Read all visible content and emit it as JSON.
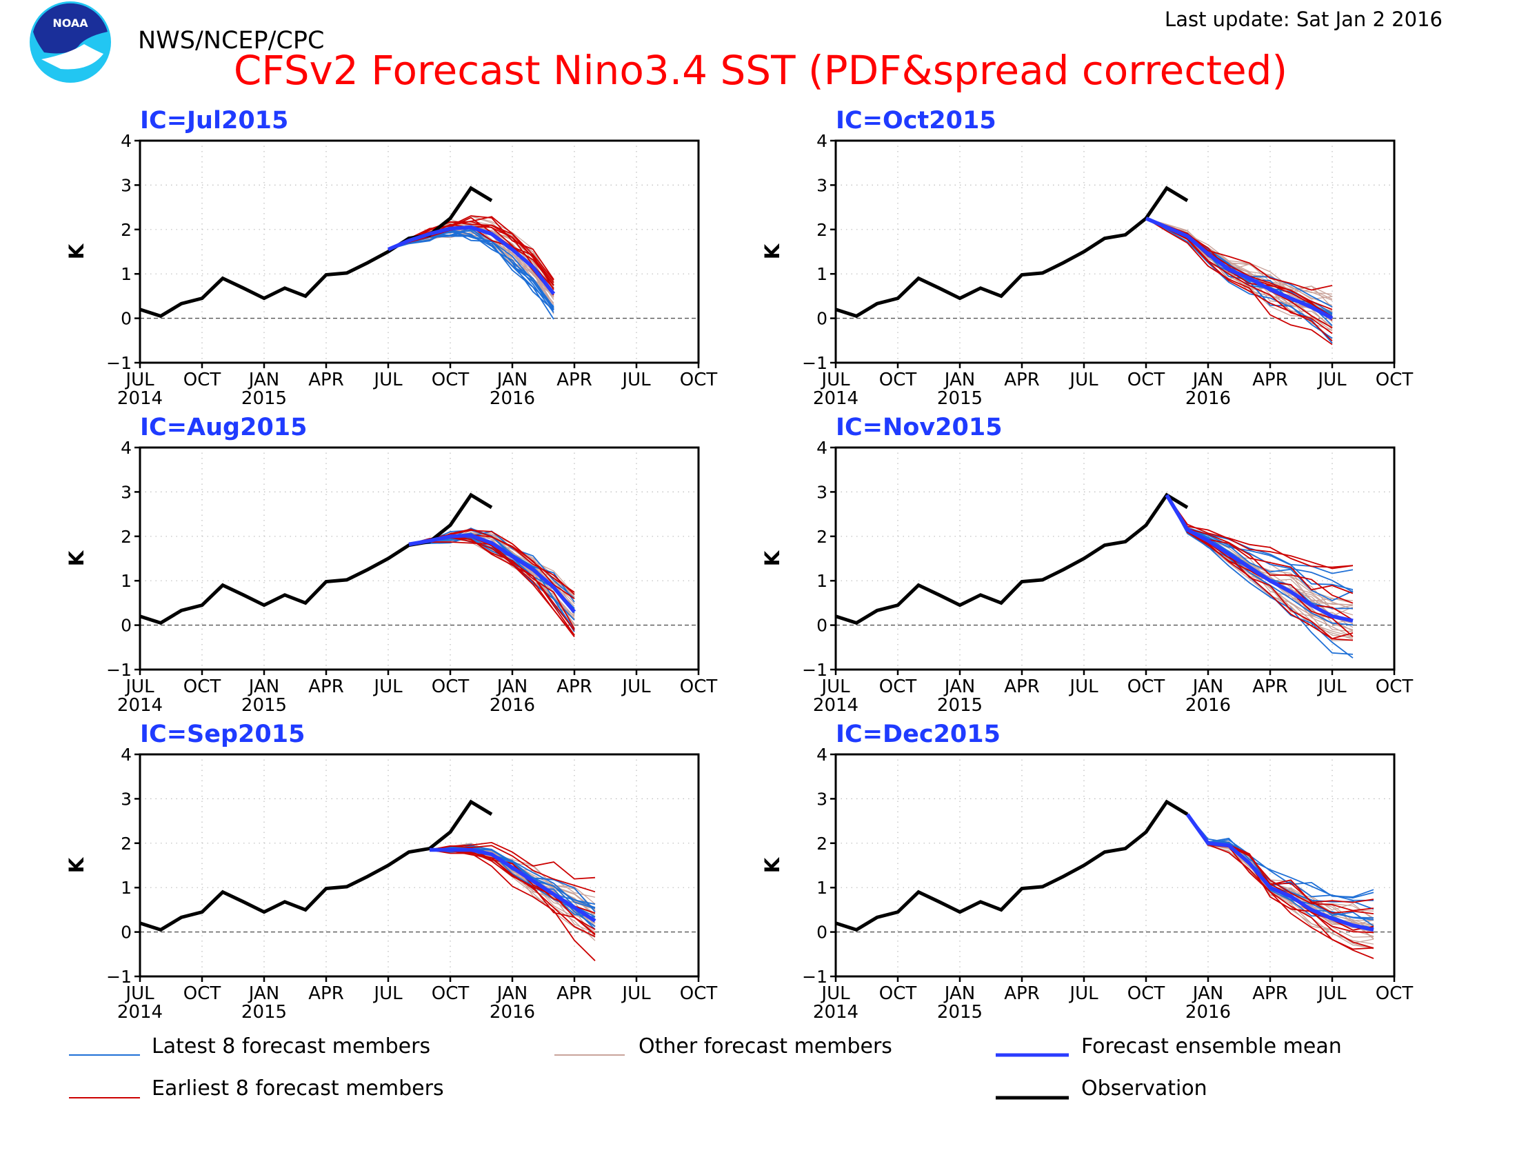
{
  "header": {
    "agency": "NWS/NCEP/CPC",
    "title": "CFSv2 Forecast Nino3.4 SST (PDF&spread corrected)",
    "last_update": "Last update: Sat Jan 2 2016",
    "logo_text": "NOAA"
  },
  "colors": {
    "title": "#ff0000",
    "panel_title": "#1f3bff",
    "observation": "#000000",
    "ensemble_mean": "#2a3cff",
    "latest_members": "#1e6fd6",
    "earliest_members": "#cc0000",
    "other_members": "#c9a39a",
    "logo_outer": "#22c6f2",
    "logo_inner": "#1a2f9a"
  },
  "legend": {
    "items": [
      {
        "label": "Latest 8 forecast members",
        "color": "#1e6fd6",
        "thick": false
      },
      {
        "label": "Other forecast members",
        "color": "#c9a39a",
        "thick": false
      },
      {
        "label": "Forecast ensemble mean",
        "color": "#2a3cff",
        "thick": true
      },
      {
        "label": "Earliest 8 forecast members",
        "color": "#cc0000",
        "thick": false
      },
      {
        "label": "Observation",
        "color": "#000000",
        "thick": true
      }
    ]
  },
  "chart_data": [
    {
      "type": "line",
      "ic": "IC=Jul2015",
      "ylabel": "K",
      "ylim": [
        -1,
        4
      ],
      "x_ticks": [
        "JUL",
        "OCT",
        "JAN",
        "APR",
        "JUL",
        "OCT",
        "JAN",
        "APR",
        "JUL",
        "OCT"
      ],
      "year_labels": [
        {
          "at": 0,
          "label": "2014"
        },
        {
          "at": 6,
          "label": "2015"
        },
        {
          "at": 18,
          "label": "2016"
        }
      ],
      "grid": true,
      "zero_line": true,
      "observation": [
        {
          "x": 0,
          "y": 0.2
        },
        {
          "x": 1,
          "y": 0.05
        },
        {
          "x": 2,
          "y": 0.33
        },
        {
          "x": 3,
          "y": 0.45
        },
        {
          "x": 4,
          "y": 0.9
        },
        {
          "x": 5,
          "y": 0.68
        },
        {
          "x": 6,
          "y": 0.45
        },
        {
          "x": 7,
          "y": 0.68
        },
        {
          "x": 8,
          "y": 0.5
        },
        {
          "x": 9,
          "y": 0.98
        },
        {
          "x": 10,
          "y": 1.02
        },
        {
          "x": 11,
          "y": 1.25
        },
        {
          "x": 12,
          "y": 1.5
        },
        {
          "x": 13,
          "y": 1.8
        },
        {
          "x": 14,
          "y": 1.88
        },
        {
          "x": 15,
          "y": 2.25
        },
        {
          "x": 16,
          "y": 2.93
        },
        {
          "x": 17,
          "y": 2.65
        }
      ],
      "ensemble_mean": [
        {
          "x": 12,
          "y": 1.55
        },
        {
          "x": 13,
          "y": 1.75
        },
        {
          "x": 14,
          "y": 1.9
        },
        {
          "x": 15,
          "y": 2.02
        },
        {
          "x": 16,
          "y": 2.05
        },
        {
          "x": 17,
          "y": 1.9
        },
        {
          "x": 18,
          "y": 1.55
        },
        {
          "x": 19,
          "y": 1.15
        },
        {
          "x": 20,
          "y": 0.55
        }
      ],
      "spread": {
        "latest": [
          -0.55,
          0.0
        ],
        "earliest": [
          0.0,
          0.45
        ],
        "other": [
          -0.3,
          0.3
        ]
      }
    },
    {
      "type": "line",
      "ic": "IC=Oct2015",
      "ylabel": "K",
      "ylim": [
        -1,
        4
      ],
      "x_ticks": [
        "JUL",
        "OCT",
        "JAN",
        "APR",
        "JUL",
        "OCT",
        "JAN",
        "APR",
        "JUL",
        "OCT"
      ],
      "year_labels": [
        {
          "at": 0,
          "label": "2014"
        },
        {
          "at": 6,
          "label": "2015"
        },
        {
          "at": 18,
          "label": "2016"
        }
      ],
      "grid": true,
      "zero_line": true,
      "observation": [
        {
          "x": 0,
          "y": 0.2
        },
        {
          "x": 1,
          "y": 0.05
        },
        {
          "x": 2,
          "y": 0.33
        },
        {
          "x": 3,
          "y": 0.45
        },
        {
          "x": 4,
          "y": 0.9
        },
        {
          "x": 5,
          "y": 0.68
        },
        {
          "x": 6,
          "y": 0.45
        },
        {
          "x": 7,
          "y": 0.68
        },
        {
          "x": 8,
          "y": 0.5
        },
        {
          "x": 9,
          "y": 0.98
        },
        {
          "x": 10,
          "y": 1.02
        },
        {
          "x": 11,
          "y": 1.25
        },
        {
          "x": 12,
          "y": 1.5
        },
        {
          "x": 13,
          "y": 1.8
        },
        {
          "x": 14,
          "y": 1.88
        },
        {
          "x": 15,
          "y": 2.25
        },
        {
          "x": 16,
          "y": 2.93
        },
        {
          "x": 17,
          "y": 2.65
        }
      ],
      "ensemble_mean": [
        {
          "x": 15,
          "y": 2.25
        },
        {
          "x": 16,
          "y": 2.05
        },
        {
          "x": 17,
          "y": 1.85
        },
        {
          "x": 18,
          "y": 1.45
        },
        {
          "x": 19,
          "y": 1.1
        },
        {
          "x": 20,
          "y": 0.9
        },
        {
          "x": 21,
          "y": 0.65
        },
        {
          "x": 22,
          "y": 0.45
        },
        {
          "x": 23,
          "y": 0.25
        },
        {
          "x": 24,
          "y": 0.0
        }
      ],
      "spread": {
        "latest": [
          -0.5,
          0.35
        ],
        "earliest": [
          -0.75,
          0.65
        ],
        "other": [
          -0.45,
          0.45
        ]
      }
    },
    {
      "type": "line",
      "ic": "IC=Aug2015",
      "ylabel": "K",
      "ylim": [
        -1,
        4
      ],
      "x_ticks": [
        "JUL",
        "OCT",
        "JAN",
        "APR",
        "JUL",
        "OCT",
        "JAN",
        "APR",
        "JUL",
        "OCT"
      ],
      "year_labels": [
        {
          "at": 0,
          "label": "2014"
        },
        {
          "at": 6,
          "label": "2015"
        },
        {
          "at": 18,
          "label": "2016"
        }
      ],
      "grid": true,
      "zero_line": true,
      "observation": [
        {
          "x": 0,
          "y": 0.2
        },
        {
          "x": 1,
          "y": 0.05
        },
        {
          "x": 2,
          "y": 0.33
        },
        {
          "x": 3,
          "y": 0.45
        },
        {
          "x": 4,
          "y": 0.9
        },
        {
          "x": 5,
          "y": 0.68
        },
        {
          "x": 6,
          "y": 0.45
        },
        {
          "x": 7,
          "y": 0.68
        },
        {
          "x": 8,
          "y": 0.5
        },
        {
          "x": 9,
          "y": 0.98
        },
        {
          "x": 10,
          "y": 1.02
        },
        {
          "x": 11,
          "y": 1.25
        },
        {
          "x": 12,
          "y": 1.5
        },
        {
          "x": 13,
          "y": 1.8
        },
        {
          "x": 14,
          "y": 1.88
        },
        {
          "x": 15,
          "y": 2.25
        },
        {
          "x": 16,
          "y": 2.93
        },
        {
          "x": 17,
          "y": 2.65
        }
      ],
      "ensemble_mean": [
        {
          "x": 13,
          "y": 1.82
        },
        {
          "x": 14,
          "y": 1.9
        },
        {
          "x": 15,
          "y": 2.0
        },
        {
          "x": 16,
          "y": 2.02
        },
        {
          "x": 17,
          "y": 1.85
        },
        {
          "x": 18,
          "y": 1.55
        },
        {
          "x": 19,
          "y": 1.25
        },
        {
          "x": 20,
          "y": 0.85
        },
        {
          "x": 21,
          "y": 0.3
        }
      ],
      "spread": {
        "latest": [
          -0.45,
          0.35
        ],
        "earliest": [
          -0.6,
          0.5
        ],
        "other": [
          -0.3,
          0.3
        ]
      }
    },
    {
      "type": "line",
      "ic": "IC=Nov2015",
      "ylabel": "K",
      "ylim": [
        -1,
        4
      ],
      "x_ticks": [
        "JUL",
        "OCT",
        "JAN",
        "APR",
        "JUL",
        "OCT",
        "JAN",
        "APR",
        "JUL",
        "OCT"
      ],
      "year_labels": [
        {
          "at": 0,
          "label": "2014"
        },
        {
          "at": 6,
          "label": "2015"
        },
        {
          "at": 18,
          "label": "2016"
        }
      ],
      "grid": true,
      "zero_line": true,
      "observation": [
        {
          "x": 0,
          "y": 0.2
        },
        {
          "x": 1,
          "y": 0.05
        },
        {
          "x": 2,
          "y": 0.33
        },
        {
          "x": 3,
          "y": 0.45
        },
        {
          "x": 4,
          "y": 0.9
        },
        {
          "x": 5,
          "y": 0.68
        },
        {
          "x": 6,
          "y": 0.45
        },
        {
          "x": 7,
          "y": 0.68
        },
        {
          "x": 8,
          "y": 0.5
        },
        {
          "x": 9,
          "y": 0.98
        },
        {
          "x": 10,
          "y": 1.02
        },
        {
          "x": 11,
          "y": 1.25
        },
        {
          "x": 12,
          "y": 1.5
        },
        {
          "x": 13,
          "y": 1.8
        },
        {
          "x": 14,
          "y": 1.88
        },
        {
          "x": 15,
          "y": 2.25
        },
        {
          "x": 16,
          "y": 2.93
        },
        {
          "x": 17,
          "y": 2.65
        }
      ],
      "ensemble_mean": [
        {
          "x": 16,
          "y": 2.93
        },
        {
          "x": 17,
          "y": 2.15
        },
        {
          "x": 18,
          "y": 1.9
        },
        {
          "x": 19,
          "y": 1.6
        },
        {
          "x": 20,
          "y": 1.3
        },
        {
          "x": 21,
          "y": 1.0
        },
        {
          "x": 22,
          "y": 0.75
        },
        {
          "x": 23,
          "y": 0.45
        },
        {
          "x": 24,
          "y": 0.2
        },
        {
          "x": 25,
          "y": 0.1
        }
      ],
      "spread": {
        "latest": [
          -1.05,
          1.1
        ],
        "earliest": [
          -0.75,
          1.7
        ],
        "other": [
          -0.45,
          0.45
        ]
      }
    },
    {
      "type": "line",
      "ic": "IC=Sep2015",
      "ylabel": "K",
      "ylim": [
        -1,
        4
      ],
      "x_ticks": [
        "JUL",
        "OCT",
        "JAN",
        "APR",
        "JUL",
        "OCT",
        "JAN",
        "APR",
        "JUL",
        "OCT"
      ],
      "year_labels": [
        {
          "at": 0,
          "label": "2014"
        },
        {
          "at": 6,
          "label": "2015"
        },
        {
          "at": 18,
          "label": "2016"
        }
      ],
      "grid": true,
      "zero_line": true,
      "observation": [
        {
          "x": 0,
          "y": 0.2
        },
        {
          "x": 1,
          "y": 0.05
        },
        {
          "x": 2,
          "y": 0.33
        },
        {
          "x": 3,
          "y": 0.45
        },
        {
          "x": 4,
          "y": 0.9
        },
        {
          "x": 5,
          "y": 0.68
        },
        {
          "x": 6,
          "y": 0.45
        },
        {
          "x": 7,
          "y": 0.68
        },
        {
          "x": 8,
          "y": 0.5
        },
        {
          "x": 9,
          "y": 0.98
        },
        {
          "x": 10,
          "y": 1.02
        },
        {
          "x": 11,
          "y": 1.25
        },
        {
          "x": 12,
          "y": 1.5
        },
        {
          "x": 13,
          "y": 1.8
        },
        {
          "x": 14,
          "y": 1.88
        },
        {
          "x": 15,
          "y": 2.25
        },
        {
          "x": 16,
          "y": 2.93
        },
        {
          "x": 17,
          "y": 2.65
        }
      ],
      "ensemble_mean": [
        {
          "x": 14,
          "y": 1.85
        },
        {
          "x": 15,
          "y": 1.85
        },
        {
          "x": 16,
          "y": 1.85
        },
        {
          "x": 17,
          "y": 1.75
        },
        {
          "x": 18,
          "y": 1.45
        },
        {
          "x": 19,
          "y": 1.15
        },
        {
          "x": 20,
          "y": 0.85
        },
        {
          "x": 21,
          "y": 0.55
        },
        {
          "x": 22,
          "y": 0.25
        }
      ],
      "spread": {
        "latest": [
          -0.25,
          0.45
        ],
        "earliest": [
          -0.75,
          0.95
        ],
        "other": [
          -0.4,
          0.4
        ]
      }
    },
    {
      "type": "line",
      "ic": "IC=Dec2015",
      "ylabel": "K",
      "ylim": [
        -1,
        4
      ],
      "x_ticks": [
        "JUL",
        "OCT",
        "JAN",
        "APR",
        "JUL",
        "OCT",
        "JAN",
        "APR",
        "JUL",
        "OCT"
      ],
      "year_labels": [
        {
          "at": 0,
          "label": "2014"
        },
        {
          "at": 6,
          "label": "2015"
        },
        {
          "at": 18,
          "label": "2016"
        }
      ],
      "grid": true,
      "zero_line": true,
      "observation": [
        {
          "x": 0,
          "y": 0.2
        },
        {
          "x": 1,
          "y": 0.05
        },
        {
          "x": 2,
          "y": 0.33
        },
        {
          "x": 3,
          "y": 0.45
        },
        {
          "x": 4,
          "y": 0.9
        },
        {
          "x": 5,
          "y": 0.68
        },
        {
          "x": 6,
          "y": 0.45
        },
        {
          "x": 7,
          "y": 0.68
        },
        {
          "x": 8,
          "y": 0.5
        },
        {
          "x": 9,
          "y": 0.98
        },
        {
          "x": 10,
          "y": 1.02
        },
        {
          "x": 11,
          "y": 1.25
        },
        {
          "x": 12,
          "y": 1.5
        },
        {
          "x": 13,
          "y": 1.8
        },
        {
          "x": 14,
          "y": 1.88
        },
        {
          "x": 15,
          "y": 2.25
        },
        {
          "x": 16,
          "y": 2.93
        },
        {
          "x": 17,
          "y": 2.65
        }
      ],
      "ensemble_mean": [
        {
          "x": 17,
          "y": 2.65
        },
        {
          "x": 18,
          "y": 2.0
        },
        {
          "x": 19,
          "y": 1.95
        },
        {
          "x": 20,
          "y": 1.55
        },
        {
          "x": 21,
          "y": 1.0
        },
        {
          "x": 22,
          "y": 0.8
        },
        {
          "x": 23,
          "y": 0.5
        },
        {
          "x": 24,
          "y": 0.3
        },
        {
          "x": 25,
          "y": 0.15
        },
        {
          "x": 26,
          "y": 0.05
        }
      ],
      "spread": {
        "latest": [
          -0.4,
          1.0
        ],
        "earliest": [
          -1.0,
          0.85
        ],
        "other": [
          -0.45,
          0.6
        ]
      }
    }
  ]
}
